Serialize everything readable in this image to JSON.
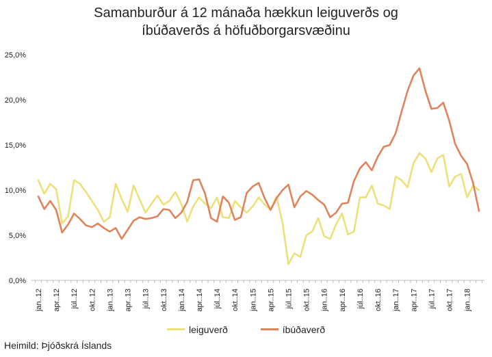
{
  "colors": {
    "leiguverd": "#ede07a",
    "ibudaverd": "#e0825a",
    "axis": "#bdbdbd"
  },
  "chart_data": {
    "type": "line",
    "title": "Samanburður á 12 mánaða hækkun leiguverðs og íbúðaverðs á höfuðborgarsvæðinu",
    "title_lines": [
      "Samanburður á 12 mánaða hækkun leiguverðs og",
      "íbúðaverðs á höfuðborgarsvæðinu"
    ],
    "ylim": [
      0,
      25
    ],
    "yticks": [
      {
        "value": 0,
        "label": "0,0%"
      },
      {
        "value": 5,
        "label": "5,0%"
      },
      {
        "value": 10,
        "label": "10,0%"
      },
      {
        "value": 15,
        "label": "15,0%"
      },
      {
        "value": 20,
        "label": "20,0%"
      },
      {
        "value": 25,
        "label": "25,0%"
      }
    ],
    "xtick_labels": [
      {
        "index": 0,
        "label": "jan..12"
      },
      {
        "index": 3,
        "label": "apr..12"
      },
      {
        "index": 6,
        "label": "júl..12"
      },
      {
        "index": 9,
        "label": "okt..12"
      },
      {
        "index": 12,
        "label": "jan..13"
      },
      {
        "index": 15,
        "label": "apr..13"
      },
      {
        "index": 18,
        "label": "júl..13"
      },
      {
        "index": 21,
        "label": "okt..13"
      },
      {
        "index": 24,
        "label": "jan..14"
      },
      {
        "index": 27,
        "label": "apr..14"
      },
      {
        "index": 30,
        "label": "júl..14"
      },
      {
        "index": 33,
        "label": "okt..14"
      },
      {
        "index": 36,
        "label": "jan..15"
      },
      {
        "index": 39,
        "label": "apr..15"
      },
      {
        "index": 42,
        "label": "júl..15"
      },
      {
        "index": 45,
        "label": "okt..15"
      },
      {
        "index": 48,
        "label": "jan..16"
      },
      {
        "index": 51,
        "label": "apr..16"
      },
      {
        "index": 54,
        "label": "júl..16"
      },
      {
        "index": 57,
        "label": "okt..16"
      },
      {
        "index": 60,
        "label": "jan..17"
      },
      {
        "index": 63,
        "label": "apr..17"
      },
      {
        "index": 66,
        "label": "júl..17"
      },
      {
        "index": 69,
        "label": "okt..17"
      },
      {
        "index": 72,
        "label": "jan..18"
      }
    ],
    "series": [
      {
        "name": "leiguverð",
        "color": "#ede07a",
        "values": [
          11.1,
          9.6,
          10.7,
          10.1,
          6.3,
          7.1,
          11.1,
          10.7,
          9.8,
          8.8,
          7.8,
          6.5,
          7.0,
          10.7,
          9.0,
          7.6,
          10.5,
          9.0,
          7.5,
          8.5,
          9.4,
          8.4,
          8.8,
          9.8,
          8.5,
          6.5,
          8.2,
          9.2,
          8.5,
          8.0,
          9.2,
          7.0,
          6.9,
          8.8,
          8.1,
          7.5,
          8.2,
          9.2,
          8.4,
          7.8,
          9.3,
          6.4,
          1.8,
          3.0,
          2.6,
          5.0,
          5.4,
          6.9,
          4.9,
          4.6,
          6.2,
          7.4,
          5.1,
          5.4,
          9.2,
          9.2,
          10.5,
          8.5,
          8.3,
          7.9,
          11.5,
          11.1,
          10.3,
          13.0,
          14.1,
          13.5,
          12.0,
          13.5,
          13.9,
          10.4,
          11.5,
          11.8,
          9.2,
          10.5,
          10.0
        ]
      },
      {
        "name": "íbúðaverð",
        "color": "#e0825a",
        "values": [
          9.3,
          7.9,
          8.8,
          7.8,
          5.3,
          6.2,
          7.4,
          6.8,
          6.1,
          5.9,
          6.3,
          5.8,
          5.4,
          5.8,
          4.6,
          5.6,
          6.6,
          7.0,
          6.8,
          6.9,
          7.1,
          7.9,
          7.8,
          6.9,
          7.5,
          8.7,
          11.1,
          11.2,
          9.6,
          6.9,
          6.5,
          9.3,
          8.6,
          6.7,
          7.0,
          9.7,
          10.4,
          10.8,
          9.1,
          7.8,
          9.1,
          10.0,
          10.6,
          8.1,
          9.3,
          9.9,
          9.5,
          8.9,
          8.4,
          7.0,
          7.5,
          8.5,
          8.6,
          11.0,
          12.4,
          13.1,
          12.2,
          13.7,
          14.8,
          15.0,
          16.3,
          18.7,
          21.0,
          22.7,
          23.5,
          21.0,
          19.0,
          19.1,
          19.7,
          17.7,
          15.1,
          13.8,
          12.9,
          10.8,
          7.7
        ]
      }
    ],
    "legend": [
      "leiguverð",
      "íbúðaverð"
    ],
    "legend_position": "bottom",
    "source": "Heimild: Þjóðskrá Íslands"
  }
}
